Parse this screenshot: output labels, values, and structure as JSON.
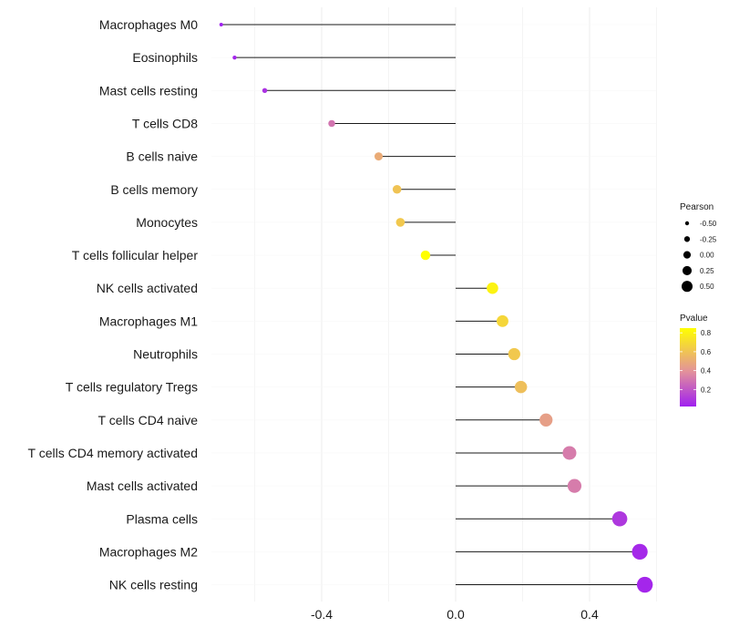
{
  "chart_data": {
    "type": "lollipop",
    "title": "",
    "xlabel": "",
    "ylabel": "",
    "xlim": [
      -0.7,
      0.6
    ],
    "x_ticks": [
      -0.4,
      0.0,
      0.4
    ],
    "x_tick_labels": [
      "-0.4",
      "0.0",
      "0.4"
    ],
    "grid": true,
    "baseline": 0,
    "categories": [
      "Macrophages M0",
      "Eosinophils",
      "Mast cells resting",
      "T cells CD8",
      "B cells naive",
      "B cells memory",
      "Monocytes",
      "T cells follicular helper",
      "NK cells activated",
      "Macrophages M1",
      "Neutrophils",
      "T cells regulatory  Tregs ",
      "T cells CD4 naive",
      "T cells CD4 memory activated",
      "Mast cells activated",
      "Plasma cells",
      "Macrophages M2",
      "NK cells resting"
    ],
    "pearson": [
      -0.7,
      -0.66,
      -0.57,
      -0.37,
      -0.23,
      -0.175,
      -0.165,
      -0.09,
      0.11,
      0.14,
      0.175,
      0.195,
      0.27,
      0.34,
      0.355,
      0.49,
      0.55,
      0.565
    ],
    "pvalue": [
      0.02,
      0.04,
      0.08,
      0.3,
      0.5,
      0.6,
      0.62,
      0.85,
      0.8,
      0.68,
      0.62,
      0.58,
      0.45,
      0.32,
      0.32,
      0.1,
      0.05,
      0.04
    ],
    "legend_size": {
      "title": "Pearson",
      "values": [
        -0.5,
        -0.25,
        0.0,
        0.25,
        0.5
      ],
      "labels": [
        "-0.50",
        "-0.25",
        "0.00",
        "0.25",
        "0.50"
      ]
    },
    "legend_color": {
      "title": "Pvalue",
      "ticks": [
        0.2,
        0.4,
        0.6,
        0.8
      ],
      "tick_labels": [
        "0.2",
        "0.4",
        "0.6",
        "0.8"
      ],
      "range": [
        0.02,
        0.85
      ],
      "low_color": "#a020f0",
      "mid_color": "#e3929a",
      "high_color": "#ffff00"
    }
  }
}
